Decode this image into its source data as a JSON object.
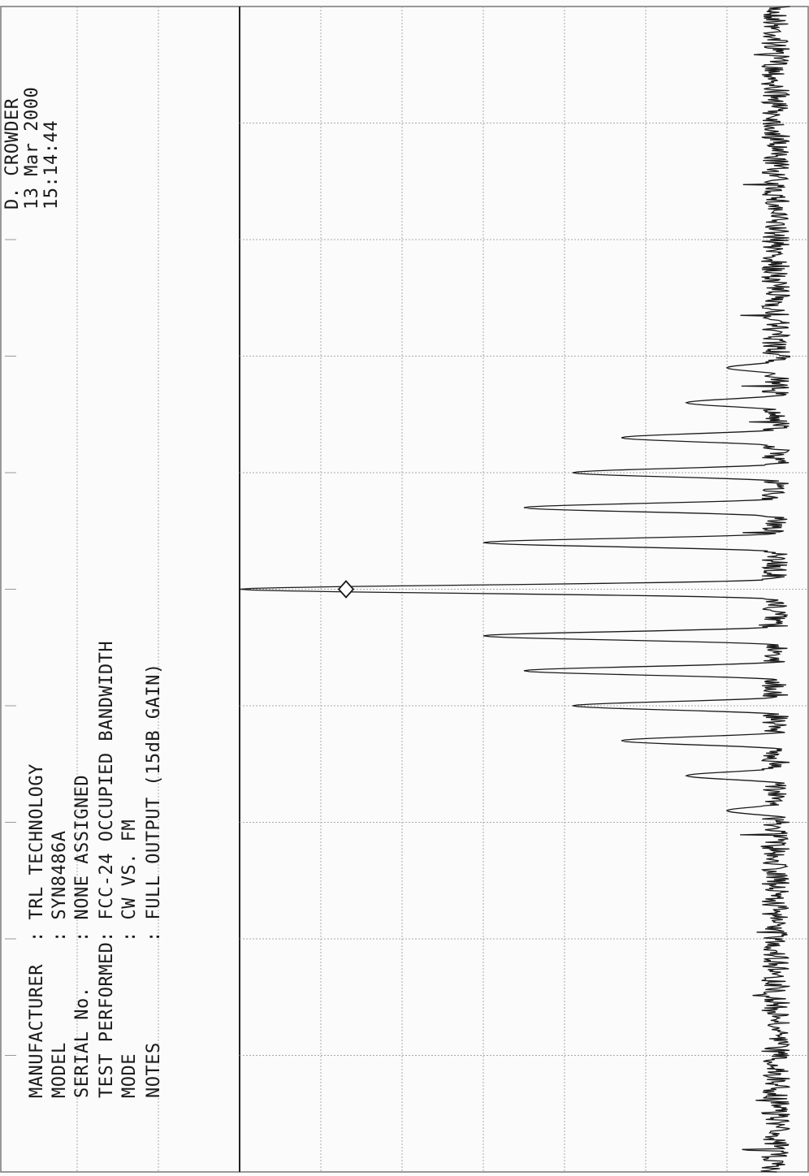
{
  "header": {
    "labels": [
      "MANUFACTURER",
      "MODEL",
      "SERIAL No.",
      "TEST PERFORMED",
      "MODE",
      "NOTES"
    ],
    "values": [
      ": TRL TECHNOLOGY",
      ": SYN8486A",
      ": NONE ASSIGNED",
      ": FCC-24 OCCUPIED BANDWIDTH",
      ": CW VS. FM",
      ": FULL OUTPUT (15dB GAIN)"
    ]
  },
  "operator": {
    "name": "D. CROWDER",
    "date": "13 Mar 2000",
    "time": "15:14:44"
  },
  "chart_data": {
    "type": "line",
    "title": "",
    "xlabel": "",
    "ylabel": "",
    "grid": true,
    "orientation": "printed rotated 90 degrees counter-clockwise",
    "x_divisions": 10,
    "y_divisions": 7,
    "traces": [
      {
        "name": "",
        "description": "CW carrier",
        "x": [
          5.0
        ],
        "y": [
          7.0
        ],
        "marker": "diamond"
      },
      {
        "name": "",
        "description": "FM sidebands",
        "x": [
          3.1,
          3.4,
          3.7,
          4.0,
          4.3,
          4.6,
          5.4,
          5.7,
          6.0,
          6.3,
          6.6,
          6.9
        ],
        "y": [
          1.0,
          1.5,
          2.3,
          2.9,
          3.5,
          4.0,
          4.0,
          3.5,
          2.9,
          2.3,
          1.5,
          1.0
        ]
      }
    ],
    "noise_floor_level": 0.4
  }
}
